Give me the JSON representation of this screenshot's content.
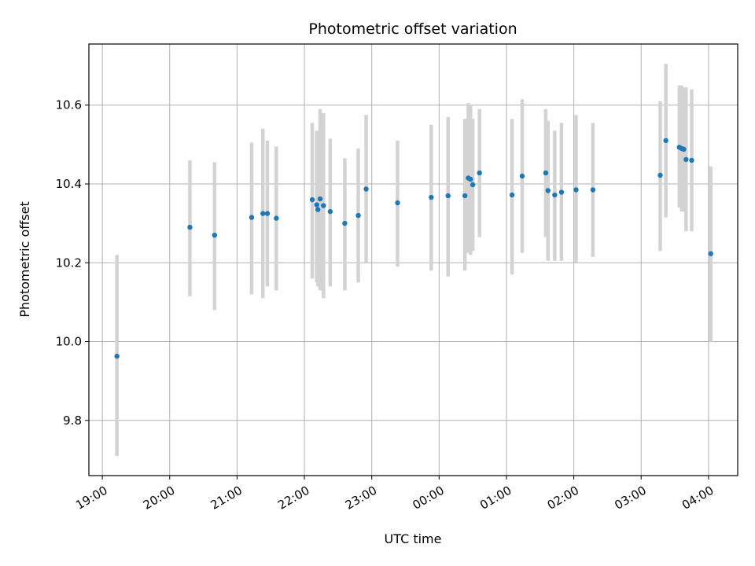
{
  "chart_data": {
    "type": "scatter",
    "title": "Photometric offset variation",
    "xlabel": "UTC time",
    "ylabel": "Photometric offset",
    "x_axis": "time",
    "xlim": [
      "18:48",
      "04:26"
    ],
    "ylim": [
      9.66,
      10.755
    ],
    "grid": true,
    "x_ticks": [
      "19:00",
      "20:00",
      "21:00",
      "22:00",
      "23:00",
      "00:00",
      "01:00",
      "02:00",
      "03:00",
      "04:00"
    ],
    "y_ticks": [
      9.8,
      10.0,
      10.2,
      10.4,
      10.6
    ],
    "y_tick_labels": [
      "9.8",
      "10.0",
      "10.2",
      "10.4",
      "10.6"
    ],
    "colors": {
      "marker": "#1f77b4",
      "errorbar": "#d3d3d3",
      "grid": "#b0b0b0"
    },
    "series": [
      {
        "points": [
          {
            "x": "19:13",
            "y": 9.963,
            "lo": 9.71,
            "hi": 10.22
          },
          {
            "x": "20:18",
            "y": 10.29,
            "lo": 10.115,
            "hi": 10.46
          },
          {
            "x": "20:40",
            "y": 10.27,
            "lo": 10.08,
            "hi": 10.455
          },
          {
            "x": "21:13",
            "y": 10.315,
            "lo": 10.12,
            "hi": 10.505
          },
          {
            "x": "21:23",
            "y": 10.325,
            "lo": 10.11,
            "hi": 10.54
          },
          {
            "x": "21:27",
            "y": 10.325,
            "lo": 10.14,
            "hi": 10.51
          },
          {
            "x": "21:35",
            "y": 10.313,
            "lo": 10.13,
            "hi": 10.495
          },
          {
            "x": "22:07",
            "y": 10.36,
            "lo": 10.16,
            "hi": 10.555
          },
          {
            "x": "22:11",
            "y": 10.347,
            "lo": 10.15,
            "hi": 10.535
          },
          {
            "x": "22:12",
            "y": 10.335,
            "lo": 10.14,
            "hi": 10.53
          },
          {
            "x": "22:14",
            "y": 10.362,
            "lo": 10.13,
            "hi": 10.59
          },
          {
            "x": "22:17",
            "y": 10.345,
            "lo": 10.11,
            "hi": 10.58
          },
          {
            "x": "22:23",
            "y": 10.33,
            "lo": 10.14,
            "hi": 10.515
          },
          {
            "x": "22:36",
            "y": 10.3,
            "lo": 10.13,
            "hi": 10.465
          },
          {
            "x": "22:48",
            "y": 10.32,
            "lo": 10.15,
            "hi": 10.49
          },
          {
            "x": "22:55",
            "y": 10.387,
            "lo": 10.2,
            "hi": 10.575
          },
          {
            "x": "23:23",
            "y": 10.352,
            "lo": 10.19,
            "hi": 10.51
          },
          {
            "x": "23:53",
            "y": 10.366,
            "lo": 10.18,
            "hi": 10.55
          },
          {
            "x": "00:08",
            "y": 10.37,
            "lo": 10.165,
            "hi": 10.57
          },
          {
            "x": "00:23",
            "y": 10.37,
            "lo": 10.18,
            "hi": 10.565
          },
          {
            "x": "00:26",
            "y": 10.415,
            "lo": 10.225,
            "hi": 10.605
          },
          {
            "x": "00:28",
            "y": 10.412,
            "lo": 10.22,
            "hi": 10.6
          },
          {
            "x": "00:30",
            "y": 10.398,
            "lo": 10.23,
            "hi": 10.565
          },
          {
            "x": "00:36",
            "y": 10.428,
            "lo": 10.265,
            "hi": 10.59
          },
          {
            "x": "01:05",
            "y": 10.372,
            "lo": 10.17,
            "hi": 10.565
          },
          {
            "x": "01:14",
            "y": 10.42,
            "lo": 10.225,
            "hi": 10.615
          },
          {
            "x": "01:35",
            "y": 10.428,
            "lo": 10.265,
            "hi": 10.59
          },
          {
            "x": "01:37",
            "y": 10.383,
            "lo": 10.205,
            "hi": 10.56
          },
          {
            "x": "01:43",
            "y": 10.372,
            "lo": 10.205,
            "hi": 10.535
          },
          {
            "x": "01:49",
            "y": 10.379,
            "lo": 10.205,
            "hi": 10.555
          },
          {
            "x": "02:02",
            "y": 10.385,
            "lo": 10.2,
            "hi": 10.575
          },
          {
            "x": "02:17",
            "y": 10.385,
            "lo": 10.215,
            "hi": 10.555
          },
          {
            "x": "03:17",
            "y": 10.422,
            "lo": 10.23,
            "hi": 10.61
          },
          {
            "x": "03:22",
            "y": 10.51,
            "lo": 10.315,
            "hi": 10.705
          },
          {
            "x": "03:34",
            "y": 10.493,
            "lo": 10.34,
            "hi": 10.65
          },
          {
            "x": "03:36",
            "y": 10.49,
            "lo": 10.33,
            "hi": 10.65
          },
          {
            "x": "03:38",
            "y": 10.488,
            "lo": 10.33,
            "hi": 10.645
          },
          {
            "x": "03:40",
            "y": 10.462,
            "lo": 10.28,
            "hi": 10.645
          },
          {
            "x": "03:45",
            "y": 10.46,
            "lo": 10.28,
            "hi": 10.64
          },
          {
            "x": "04:02",
            "y": 10.223,
            "lo": 10.0,
            "hi": 10.445
          }
        ]
      }
    ]
  }
}
